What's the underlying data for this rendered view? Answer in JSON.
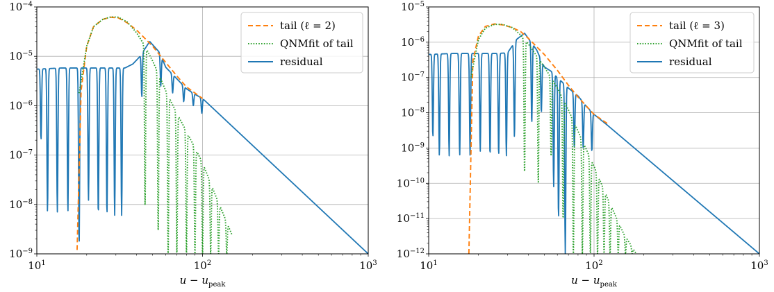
{
  "colors": {
    "tail": "#ff7f0e",
    "fit": "#2ca02c",
    "residual": "#1f77b4",
    "grid": "#b0b0b0"
  },
  "chart_data": [
    {
      "type": "line",
      "x_scale": "log",
      "y_scale": "log",
      "xlim": [
        10,
        1000
      ],
      "ylim": [
        1e-09,
        0.0001
      ],
      "x_ticks": [
        10,
        100,
        1000
      ],
      "y_ticks": [
        1e-09,
        1e-08,
        1e-07,
        1e-06,
        1e-05,
        0.0001
      ],
      "x_tick_labels": [
        {
          "base": "10",
          "exp": "1"
        },
        {
          "base": "10",
          "exp": "2"
        },
        {
          "base": "10",
          "exp": "3"
        }
      ],
      "y_tick_labels": [
        {
          "base": "10",
          "exp": "−9"
        },
        {
          "base": "10",
          "exp": "−8"
        },
        {
          "base": "10",
          "exp": "−7"
        },
        {
          "base": "10",
          "exp": "−6"
        },
        {
          "base": "10",
          "exp": "−5"
        },
        {
          "base": "10",
          "exp": "−4"
        }
      ],
      "xlabel": {
        "main": "u − u",
        "sub": "peak"
      },
      "grid": true,
      "legend_position": "upper right",
      "series": [
        {
          "name": "tail (ℓ = 2)",
          "style": "dashed",
          "color": "tail",
          "onset": 17.5,
          "x": [
            17.5,
            18.5,
            20,
            22,
            25,
            28,
            31,
            35,
            40,
            50,
            60,
            70,
            80,
            100
          ],
          "y": [
            1.2e-09,
            2e-06,
            1.6e-05,
            4e-05,
            5.6e-05,
            6.2e-05,
            6e-05,
            4.8e-05,
            3.4e-05,
            1.6e-05,
            7.5e-06,
            4e-06,
            2.4e-06,
            1.4e-06
          ]
        },
        {
          "name": "QNMfit of tail",
          "style": "dotted",
          "color": "fit",
          "onset": 18,
          "x": [
            18,
            20,
            22,
            25,
            28,
            31,
            35,
            40,
            45,
            50,
            55,
            60,
            70,
            80,
            100,
            120,
            150
          ],
          "y": [
            1.8e-06,
            1.6e-05,
            4e-05,
            5.6e-05,
            6.3e-05,
            6.2e-05,
            5e-05,
            3e-05,
            1.6e-05,
            8e-06,
            4e-06,
            2e-06,
            7e-07,
            3e-07,
            7e-08,
            1.5e-08,
            2.5e-09
          ],
          "zeros": [
            {
              "x": 45,
              "y": 1e-08
            },
            {
              "x": 54,
              "y": 3e-09
            },
            {
              "x": 62,
              "y": 1e-09
            },
            {
              "x": 70,
              "y": 1e-09
            },
            {
              "x": 80,
              "y": 1e-09
            },
            {
              "x": 90,
              "y": 1e-09
            },
            {
              "x": 100,
              "y": 1e-09
            },
            {
              "x": 112,
              "y": 1e-09
            },
            {
              "x": 125,
              "y": 1e-09
            },
            {
              "x": 140,
              "y": 1e-09
            }
          ]
        },
        {
          "name": "residual",
          "style": "solid",
          "color": "residual",
          "x": [
            10,
            14,
            18,
            22,
            28,
            34,
            38,
            42,
            48,
            55,
            60,
            70,
            80,
            90,
            100,
            1000
          ],
          "y": [
            5.5e-06,
            5.8e-06,
            5.8e-06,
            5.8e-06,
            5.8e-06,
            5.8e-06,
            7e-06,
            1e-05,
            2e-05,
            1.2e-05,
            6e-06,
            3.5e-06,
            2.2e-06,
            1.7e-06,
            1.4e-06,
            1e-09
          ],
          "zeros": [
            {
              "x": 10.6,
              "y": 2e-07
            },
            {
              "x": 11.6,
              "y": 7e-09
            },
            {
              "x": 13.3,
              "y": 7e-09
            },
            {
              "x": 15.4,
              "y": 7e-09
            },
            {
              "x": 18,
              "y": 1.5e-09
            },
            {
              "x": 20.5,
              "y": 1.2e-08
            },
            {
              "x": 23.5,
              "y": 6e-09
            },
            {
              "x": 26.5,
              "y": 6e-09
            },
            {
              "x": 29.5,
              "y": 6e-09
            },
            {
              "x": 32.5,
              "y": 6e-09
            },
            {
              "x": 43,
              "y": 1.5e-06
            },
            {
              "x": 56,
              "y": 2.5e-06
            },
            {
              "x": 66,
              "y": 1.8e-06
            },
            {
              "x": 77,
              "y": 1.2e-06
            },
            {
              "x": 88,
              "y": 1e-06
            },
            {
              "x": 99,
              "y": 7e-07
            }
          ]
        }
      ]
    },
    {
      "type": "line",
      "x_scale": "log",
      "y_scale": "log",
      "xlim": [
        10,
        1000
      ],
      "ylim": [
        1e-12,
        1e-05
      ],
      "x_ticks": [
        10,
        100,
        1000
      ],
      "y_ticks": [
        1e-12,
        1e-11,
        1e-10,
        1e-09,
        1e-08,
        1e-07,
        1e-06,
        1e-05
      ],
      "x_tick_labels": [
        {
          "base": "10",
          "exp": "1"
        },
        {
          "base": "10",
          "exp": "2"
        },
        {
          "base": "10",
          "exp": "3"
        }
      ],
      "y_tick_labels": [
        {
          "base": "10",
          "exp": "−12"
        },
        {
          "base": "10",
          "exp": "−11"
        },
        {
          "base": "10",
          "exp": "−10"
        },
        {
          "base": "10",
          "exp": "−9"
        },
        {
          "base": "10",
          "exp": "−8"
        },
        {
          "base": "10",
          "exp": "−7"
        },
        {
          "base": "10",
          "exp": "−6"
        },
        {
          "base": "10",
          "exp": "−5"
        }
      ],
      "xlabel": {
        "main": "u − u",
        "sub": "peak"
      },
      "grid": true,
      "legend_position": "upper right",
      "series": [
        {
          "name": "tail (ℓ = 3)",
          "style": "dashed",
          "color": "tail",
          "onset": 17.5,
          "x": [
            17.5,
            18.5,
            20,
            22,
            25,
            28,
            32,
            36,
            40,
            50,
            60,
            70,
            80,
            100,
            120
          ],
          "y": [
            1e-12,
            3e-07,
            1.5e-06,
            2.8e-06,
            3.3e-06,
            3.1e-06,
            2.6e-06,
            2e-06,
            1.3e-06,
            4.5e-07,
            1.6e-07,
            6e-08,
            2.8e-08,
            9e-09,
            5e-09
          ]
        },
        {
          "name": "QNMfit of tail",
          "style": "dotted",
          "color": "fit",
          "onset": 18,
          "x": [
            18,
            20,
            22,
            25,
            28,
            32,
            36,
            40,
            50,
            60,
            70,
            80,
            100,
            120,
            150,
            180
          ],
          "y": [
            1e-07,
            1.2e-06,
            2.5e-06,
            3.2e-06,
            3.2e-06,
            2.6e-06,
            1.6e-06,
            9e-07,
            2e-07,
            5e-08,
            1.2e-08,
            3e-09,
            3e-10,
            4e-11,
            4e-12,
            1e-12
          ],
          "zeros": [
            {
              "x": 38,
              "y": 2e-10
            },
            {
              "x": 46,
              "y": 1e-10
            },
            {
              "x": 55,
              "y": 6e-10
            },
            {
              "x": 65,
              "y": 1e-11
            },
            {
              "x": 75,
              "y": 1e-12
            },
            {
              "x": 85,
              "y": 1e-12
            },
            {
              "x": 95,
              "y": 1e-12
            },
            {
              "x": 105,
              "y": 1e-12
            },
            {
              "x": 115,
              "y": 1e-12
            },
            {
              "x": 125,
              "y": 1e-12
            },
            {
              "x": 140,
              "y": 1e-12
            },
            {
              "x": 155,
              "y": 1e-12
            },
            {
              "x": 170,
              "y": 1e-12
            }
          ]
        },
        {
          "name": "residual",
          "style": "solid",
          "color": "residual",
          "x": [
            10,
            14,
            18,
            22,
            26,
            30,
            34,
            38,
            45,
            50,
            55,
            60,
            70,
            80,
            90,
            100,
            120,
            1000
          ],
          "y": [
            4.5e-07,
            4.8e-07,
            4.8e-07,
            4.8e-07,
            4.8e-07,
            5e-07,
            1.2e-06,
            1.8e-06,
            6e-07,
            2e-07,
            1.5e-07,
            1e-07,
            5e-08,
            3e-08,
            1.5e-08,
            9e-09,
            4.5e-09,
            1e-12
          ],
          "zeros": [
            {
              "x": 10.6,
              "y": 2e-09
            },
            {
              "x": 11.6,
              "y": 6e-10
            },
            {
              "x": 13.3,
              "y": 6e-10
            },
            {
              "x": 15.4,
              "y": 6e-10
            },
            {
              "x": 17.8,
              "y": 6e-10
            },
            {
              "x": 20.5,
              "y": 8e-10
            },
            {
              "x": 23.5,
              "y": 6e-10
            },
            {
              "x": 26.5,
              "y": 6e-10
            },
            {
              "x": 29.5,
              "y": 6e-10
            },
            {
              "x": 33,
              "y": 2e-09
            },
            {
              "x": 42,
              "y": 5e-09
            },
            {
              "x": 48,
              "y": 1e-08
            },
            {
              "x": 57,
              "y": 8e-11
            },
            {
              "x": 61,
              "y": 1e-11
            },
            {
              "x": 67,
              "y": 1e-12
            },
            {
              "x": 76,
              "y": 1e-09
            },
            {
              "x": 86,
              "y": 1e-09
            },
            {
              "x": 97,
              "y": 8e-10
            }
          ]
        }
      ]
    }
  ]
}
